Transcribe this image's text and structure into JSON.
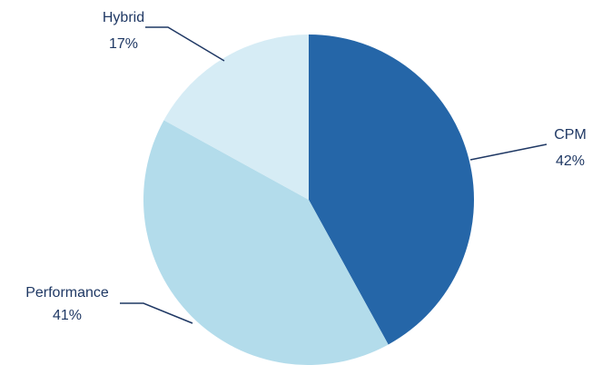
{
  "chart_data": {
    "type": "pie",
    "categories": [
      "CPM",
      "Performance",
      "Hybrid"
    ],
    "values": [
      42,
      41,
      17
    ],
    "labels": [
      "42%",
      "41%",
      "17%"
    ],
    "colors": [
      "#2566a8",
      "#b3dceb",
      "#d6ecf5"
    ],
    "title": "",
    "legend": "none",
    "start_angle": "12 o'clock",
    "direction": "clockwise"
  },
  "colors": {
    "leader_line": "#1f3864",
    "label_text": "#1f3864",
    "background": "#ffffff"
  }
}
